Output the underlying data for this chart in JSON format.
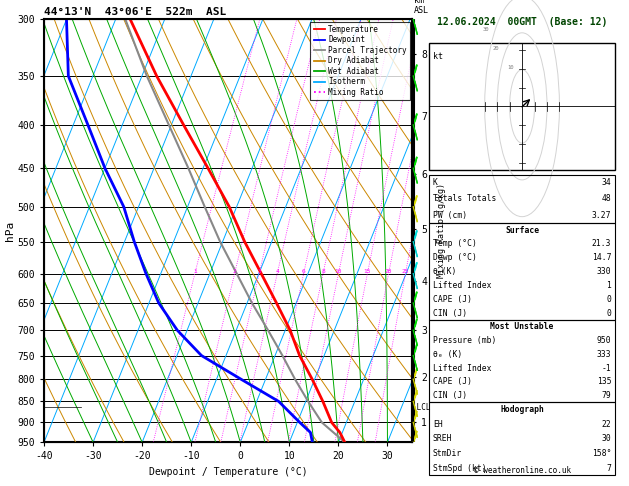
{
  "title_left": "44°13'N  43°06'E  522m  ASL",
  "title_right": "12.06.2024  00GMT  (Base: 12)",
  "xlabel": "Dewpoint / Temperature (°C)",
  "ylabel_left": "hPa",
  "p_levels": [
    300,
    350,
    400,
    450,
    500,
    550,
    600,
    650,
    700,
    750,
    800,
    850,
    900,
    950
  ],
  "p_min": 300,
  "p_max": 950,
  "T_min": -40,
  "T_max": 35,
  "temp_profile": {
    "pressure": [
      950,
      925,
      900,
      850,
      800,
      750,
      700,
      650,
      600,
      550,
      500,
      450,
      400,
      350,
      300
    ],
    "temperature": [
      21.3,
      19.5,
      17.0,
      13.5,
      9.5,
      5.0,
      1.0,
      -4.0,
      -9.5,
      -15.5,
      -21.5,
      -29.0,
      -37.5,
      -47.0,
      -57.0
    ]
  },
  "dewp_profile": {
    "pressure": [
      950,
      925,
      900,
      850,
      800,
      750,
      700,
      650,
      600,
      550,
      500,
      450,
      400,
      350,
      300
    ],
    "temperature": [
      14.7,
      13.5,
      10.5,
      4.5,
      -5.0,
      -15.0,
      -22.0,
      -28.0,
      -33.0,
      -38.0,
      -43.0,
      -50.0,
      -57.0,
      -65.0,
      -70.0
    ]
  },
  "parcel_profile": {
    "pressure": [
      950,
      900,
      850,
      800,
      750,
      700,
      650,
      600,
      550,
      500,
      450,
      400,
      350,
      300
    ],
    "temperature": [
      21.3,
      15.0,
      10.5,
      6.0,
      1.5,
      -3.5,
      -9.0,
      -14.5,
      -20.5,
      -26.5,
      -33.0,
      -40.5,
      -49.0,
      -58.0
    ]
  },
  "km_ticks": [
    1,
    2,
    3,
    4,
    5,
    6,
    7,
    8
  ],
  "km_pressures": [
    899,
    795,
    700,
    612,
    531,
    457,
    390,
    330
  ],
  "lcl_pressure": 863,
  "mixing_ratios": [
    1,
    2,
    3,
    4,
    6,
    8,
    10,
    15,
    20,
    25
  ],
  "mixing_ratio_labels_p": 600,
  "sounding_color": "#ff0000",
  "dewpoint_color": "#0000ff",
  "parcel_color": "#888888",
  "dry_adiabat_color": "#cc8800",
  "wet_adiabat_color": "#00aa00",
  "isotherm_color": "#00aaff",
  "mixing_ratio_color": "#ff00ff",
  "legend_items": [
    {
      "label": "Temperature",
      "color": "#ff0000",
      "style": "-"
    },
    {
      "label": "Dewpoint",
      "color": "#0000ff",
      "style": "-"
    },
    {
      "label": "Parcel Trajectory",
      "color": "#888888",
      "style": "-"
    },
    {
      "label": "Dry Adiabat",
      "color": "#cc8800",
      "style": "-"
    },
    {
      "label": "Wet Adiabat",
      "color": "#00aa00",
      "style": "-"
    },
    {
      "label": "Isotherm",
      "color": "#00aaff",
      "style": "-"
    },
    {
      "label": "Mixing Ratio",
      "color": "#ff00ff",
      "style": ":"
    }
  ],
  "right_panel": {
    "K": 34,
    "TotTot": 48,
    "PW": "3.27",
    "surf_temp": "21.3",
    "surf_dewp": "14.7",
    "surf_theta_e": 330,
    "surf_li": 1,
    "surf_cape": 0,
    "surf_cin": 0,
    "mu_pressure": 950,
    "mu_theta_e": 333,
    "mu_li": -1,
    "mu_cape": 135,
    "mu_cin": 79,
    "EH": 22,
    "SREH": 30,
    "StmDir": 158,
    "StmSpd": 7
  },
  "copyright": "© weatheronline.co.uk",
  "wind_barb_colors": {
    "300": "#00cc00",
    "350": "#00cc00",
    "400": "#00cc00",
    "450": "#00cc00",
    "500": "#cccc00",
    "550": "#00cccc",
    "600": "#00cccc",
    "650": "#00cc00",
    "700": "#00cc00",
    "750": "#00cc00",
    "800": "#cccc00",
    "850": "#cccc00",
    "900": "#cccc00",
    "950": "#cccc00"
  }
}
